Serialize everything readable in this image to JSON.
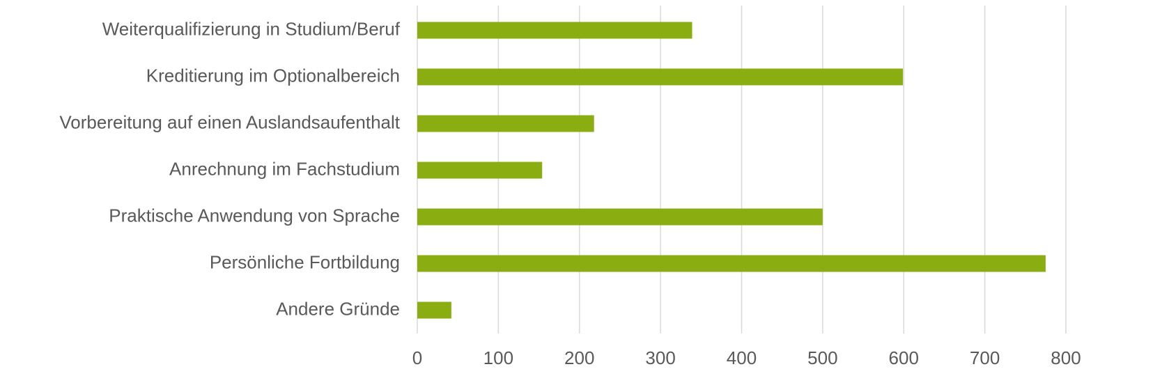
{
  "chart_data": {
    "type": "bar",
    "orientation": "horizontal",
    "categories": [
      "Weiterqualifizierung in Studium/Beruf",
      "Kreditierung im Optionalbereich",
      "Vorbereitung auf einen Auslandsaufenthalt",
      "Anrechnung im Fachstudium",
      "Praktische Anwendung von Sprache",
      "Persönliche Fortbildung",
      "Andere Gründe"
    ],
    "values": [
      339,
      599,
      218,
      154,
      500,
      775,
      42
    ],
    "color": "#8aad11",
    "xlim": [
      0,
      800
    ],
    "xticks": [
      0,
      100,
      200,
      300,
      400,
      500,
      600,
      700,
      800
    ],
    "grid": true
  }
}
